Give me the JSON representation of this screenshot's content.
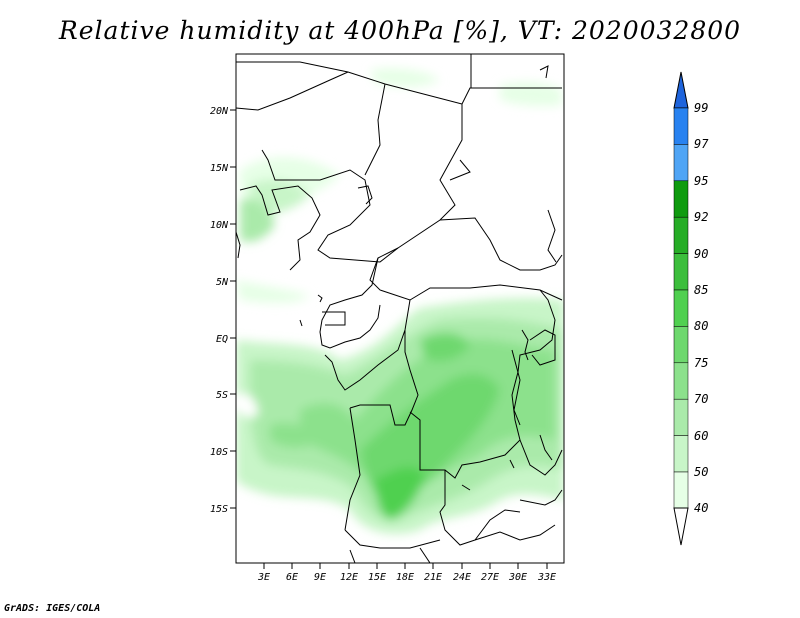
{
  "title": "Relative humidity at 400hPa [%], VT: 2020032800",
  "credit": "GrADS: IGES/COLA",
  "map": {
    "lat_labels": [
      "20N",
      "15N",
      "10N",
      "5N",
      "EQ",
      "5S",
      "10S",
      "15S"
    ],
    "lon_labels": [
      "3E",
      "6E",
      "9E",
      "12E",
      "15E",
      "18E",
      "21E",
      "24E",
      "27E",
      "30E",
      "33E"
    ]
  },
  "colorbar": {
    "labels": [
      "99",
      "97",
      "95",
      "92",
      "90",
      "85",
      "80",
      "75",
      "70",
      "60",
      "50",
      "40"
    ],
    "colors": [
      "#1e64dc",
      "#2882f0",
      "#50a5f5",
      "#0f9b0f",
      "#26ad26",
      "#3cbe3c",
      "#50d050",
      "#6ed86e",
      "#8ce18c",
      "#aaeaaa",
      "#c8f5c8",
      "#e6ffe6"
    ]
  }
}
